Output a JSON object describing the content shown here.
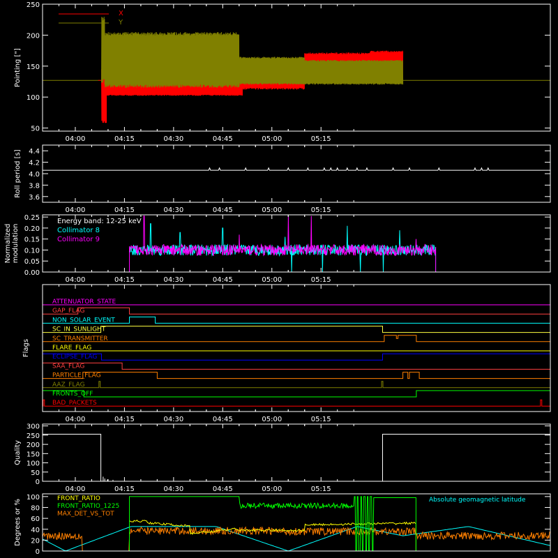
{
  "time_ticks": [
    "04:00",
    "04:15",
    "04:30",
    "04:45",
    "05:00",
    "05:15"
  ],
  "colors": {
    "X": "#ff0000",
    "Y": "#808000",
    "roll": "#ffffff",
    "c8": "#00ffff",
    "c9": "#ff00ff",
    "front_ratio": "#ffff00",
    "front_ratio_1225": "#00ff00",
    "max_det": "#ff8000",
    "geomag": "#00ffff"
  },
  "chart_data": [
    {
      "id": "pointing",
      "type": "line",
      "ylabel": "Pointing [\"]",
      "ylim": [
        45,
        250
      ],
      "yticks": [
        50,
        100,
        150,
        200,
        250
      ],
      "xlim_min": [
        230,
        385
      ],
      "series": [
        {
          "name": "X",
          "color": "#ff0000",
          "segments": [
            {
              "t0": 247.0,
              "t1": 248.0,
              "lo": 127,
              "hi": 127
            },
            {
              "t0": 248.0,
              "t1": 249.5,
              "lo": 58,
              "hi": 150
            },
            {
              "t0": 249.5,
              "t1": 291.0,
              "lo": 102,
              "hi": 132
            },
            {
              "t0": 291.0,
              "t1": 310.0,
              "lo": 112,
              "hi": 163
            },
            {
              "t0": 310.0,
              "t1": 330.0,
              "lo": 122,
              "hi": 172
            },
            {
              "t0": 330.0,
              "t1": 340.0,
              "lo": 130,
              "hi": 175
            }
          ]
        },
        {
          "name": "Y",
          "color": "#808000",
          "segments": [
            {
              "t0": 248.0,
              "t1": 249.0,
              "lo": 123,
              "hi": 230
            },
            {
              "t0": 249.0,
              "t1": 290.0,
              "lo": 115,
              "hi": 205
            },
            {
              "t0": 290.0,
              "t1": 310.0,
              "lo": 120,
              "hi": 165
            },
            {
              "t0": 310.0,
              "t1": 340.0,
              "lo": 120,
              "hi": 160
            }
          ]
        },
        {
          "name": "",
          "color": "#808000",
          "baseline": 127
        }
      ]
    },
    {
      "id": "roll",
      "type": "line",
      "ylabel": "Roll period [s]",
      "ylim": [
        3.5,
        4.5
      ],
      "yticks": [
        3.6,
        3.8,
        4.0,
        4.2,
        4.4
      ],
      "series": [
        {
          "name": "",
          "color": "#ffffff",
          "base": 4.06,
          "bumps": [
            {
              "t": 281,
              "v": 4.1
            },
            {
              "t": 284,
              "v": 4.1
            },
            {
              "t": 292,
              "v": 4.1
            },
            {
              "t": 299,
              "v": 4.1
            },
            {
              "t": 305,
              "v": 4.1
            },
            {
              "t": 311,
              "v": 4.1
            },
            {
              "t": 316,
              "v": 4.1
            },
            {
              "t": 318,
              "v": 4.1
            },
            {
              "t": 320,
              "v": 4.1
            },
            {
              "t": 323,
              "v": 4.1
            },
            {
              "t": 326,
              "v": 4.1
            },
            {
              "t": 329,
              "v": 4.1
            },
            {
              "t": 337,
              "v": 4.1
            },
            {
              "t": 342,
              "v": 4.1
            },
            {
              "t": 351,
              "v": 4.1
            },
            {
              "t": 362,
              "v": 4.1
            },
            {
              "t": 364,
              "v": 4.1
            },
            {
              "t": 366,
              "v": 4.1
            }
          ]
        }
      ]
    },
    {
      "id": "modulation",
      "type": "line",
      "ylabel": "Normalized",
      "ylabel2": "modulation",
      "annotation": "Energy band: 12-25 keV",
      "ylim": [
        0,
        0.26
      ],
      "yticks": [
        0.0,
        0.05,
        0.1,
        0.15,
        0.2,
        0.25
      ],
      "active": [
        256.5,
        350.0
      ],
      "series": [
        {
          "name": "Collimator 8",
          "color": "#00ffff",
          "mean": 0.1,
          "spikes": [
            {
              "t": 263,
              "v": 0.22
            },
            {
              "t": 272,
              "v": 0.18
            },
            {
              "t": 285,
              "v": 0.2
            },
            {
              "t": 304,
              "v": 0.16
            },
            {
              "t": 323,
              "v": 0.21
            },
            {
              "t": 339,
              "v": 0.19
            }
          ],
          "dips": [
            {
              "t": 306.0,
              "v": 0.0
            },
            {
              "t": 315.5,
              "v": 0.0
            },
            {
              "t": 327.0,
              "v": 0.0
            },
            {
              "t": 334.0,
              "v": 0.0
            }
          ]
        },
        {
          "name": "Collimator 9",
          "color": "#ff00ff",
          "mean": 0.1,
          "spikes": [
            {
              "t": 261,
              "v": 0.255
            },
            {
              "t": 305,
              "v": 0.255
            },
            {
              "t": 312,
              "v": 0.255
            },
            {
              "t": 290,
              "v": 0.17
            },
            {
              "t": 344,
              "v": 0.15
            }
          ],
          "dips": []
        }
      ]
    },
    {
      "id": "flags",
      "type": "line",
      "ylabel": "Flags",
      "series": [
        {
          "name": "ATTENUATOR_STATE",
          "color": "#ff00ff",
          "transitions": [
            [
              230,
              0
            ]
          ]
        },
        {
          "name": "GAP_FLAG",
          "color": "#ff4040",
          "transitions": [
            [
              230,
              0
            ],
            [
              240.8,
              1
            ],
            [
              256.5,
              0
            ]
          ]
        },
        {
          "name": "NON_SOLAR_EVENT",
          "color": "#00ffff",
          "transitions": [
            [
              230,
              0
            ],
            [
              256.5,
              1
            ],
            [
              264.4,
              0
            ]
          ]
        },
        {
          "name": "SC_IN_SUNLIGHT",
          "color": "#ffff40",
          "transitions": [
            [
              230,
              0
            ],
            [
              247.8,
              1
            ],
            [
              333.8,
              0
            ]
          ]
        },
        {
          "name": "SC_TRANSMITTER",
          "color": "#ff8000",
          "transitions": [
            [
              230,
              0
            ],
            [
              334.3,
              1
            ],
            [
              338.0,
              0.5
            ],
            [
              338.5,
              1
            ],
            [
              344.1,
              0
            ]
          ]
        },
        {
          "name": "FLARE_FLAG",
          "color": "#ffff00",
          "transitions": [
            [
              230,
              0
            ]
          ]
        },
        {
          "name": "ECLIPSE_FLAG",
          "color": "#0000ff",
          "transitions": [
            [
              230,
              1
            ],
            [
              248.0,
              0
            ],
            [
              333.8,
              1
            ]
          ]
        },
        {
          "name": "SAA_FLAG",
          "color": "#ff4040",
          "transitions": [
            [
              230,
              1
            ],
            [
              254.3,
              0
            ]
          ]
        },
        {
          "name": "PARTICLE_FLAG",
          "color": "#ff8000",
          "transitions": [
            [
              230,
              0
            ],
            [
              242.3,
              1
            ],
            [
              265.0,
              0
            ],
            [
              340.0,
              1
            ],
            [
              341.5,
              0
            ],
            [
              342.0,
              1
            ],
            [
              345.0,
              0
            ]
          ]
        },
        {
          "name": "AAZ_FLAG",
          "color": "#808000",
          "transitions": [
            [
              230,
              0
            ],
            [
              247.2,
              1
            ],
            [
              247.6,
              0
            ],
            [
              333.5,
              1
            ],
            [
              333.9,
              0
            ]
          ]
        },
        {
          "name": "FRONTS_OFF",
          "color": "#00ff00",
          "transitions": [
            [
              230,
              1
            ],
            [
              242.6,
              0
            ],
            [
              344.1,
              1
            ]
          ]
        },
        {
          "name": "BAD_PACKETS",
          "color": "#ff0000",
          "transitions": [
            [
              230,
              0
            ],
            [
              230.2,
              1
            ],
            [
              230.6,
              0
            ],
            [
              382.0,
              1
            ],
            [
              382.4,
              0
            ]
          ]
        }
      ]
    },
    {
      "id": "quality",
      "type": "line",
      "ylabel": "Quality",
      "ylim": [
        0,
        310
      ],
      "yticks": [
        0,
        50,
        100,
        150,
        200,
        250,
        300
      ],
      "series": [
        {
          "name": "",
          "color": "#ffffff",
          "transitions": [
            [
              230,
              255
            ],
            [
              247.8,
              0
            ],
            [
              333.8,
              255
            ],
            [
              385,
              255
            ]
          ],
          "spikes": [
            {
              "t": 248.5,
              "v": 25
            },
            {
              "t": 249.0,
              "v": 15
            },
            {
              "t": 249.8,
              "v": 10
            },
            {
              "t": 251.5,
              "v": 8
            }
          ]
        }
      ]
    },
    {
      "id": "ratios",
      "type": "line",
      "ylabel": "Degrees or %",
      "ylim": [
        0,
        105
      ],
      "yticks": [
        0,
        20,
        40,
        60,
        80,
        100
      ],
      "series": [
        {
          "name": "FRONT_RATIO",
          "color": "#ffff00"
        },
        {
          "name": "FRONT_RATIO_1225",
          "color": "#00ff00"
        },
        {
          "name": "MAX_DET_VS_TOT",
          "color": "#ff8000"
        },
        {
          "name": "Absolute geomagnetic latitude",
          "color": "#00ffff"
        }
      ]
    }
  ]
}
